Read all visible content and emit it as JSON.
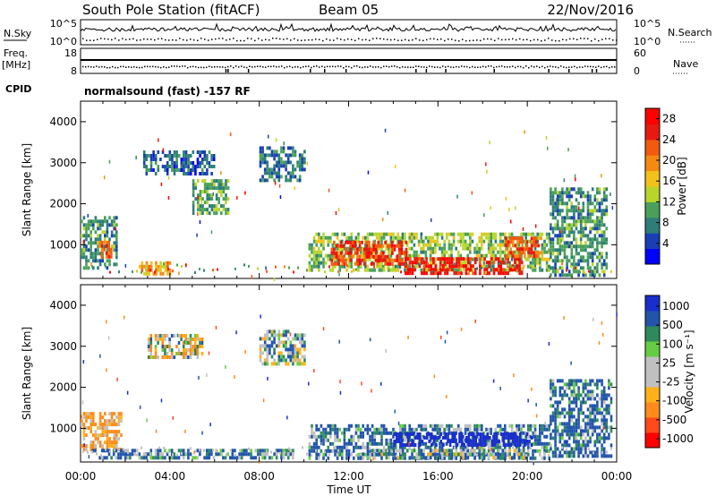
{
  "header": {
    "station_title": "South Pole Station (fitACF)",
    "beam": "Beam 05",
    "date": "22/Nov/2016",
    "cpid_label": "CPID",
    "cpid_value": "normalsound (fast) -157 RF"
  },
  "aux_panels": {
    "nsky_label": "N.Sky",
    "nsearch_label": "N.Search",
    "freq_label_line1": "Freq.",
    "freq_label_line2": "[MHz]",
    "nave_label": "Nave",
    "nsky_ticks": [
      "10^5",
      "10^0"
    ],
    "nsearch_ticks": [
      "10^5",
      "10^0"
    ],
    "freq_ticks": [
      "18",
      "8"
    ],
    "nave_ticks": [
      "60",
      "0"
    ]
  },
  "colors": {
    "power_scale": [
      "#0000ff",
      "#1a3fb5",
      "#2e7d78",
      "#4aa05a",
      "#b8d62a",
      "#f2c21a",
      "#f58a12",
      "#f25a10",
      "#e81a10",
      "#ff0000"
    ],
    "velocity_scale": [
      "#ff0000",
      "#ff4a1a",
      "#ff8c1a",
      "#ffb01a",
      "#c0c0c0",
      "#c0c0c0",
      "#66cc44",
      "#2e8a5a",
      "#2255aa",
      "#1a2ecc"
    ]
  },
  "chart_data": [
    {
      "type": "heatmap",
      "name": "power",
      "ylabel": "Slant Range [km]",
      "xlabel": "",
      "xticks": [
        "00:00",
        "04:00",
        "08:00",
        "12:00",
        "16:00",
        "20:00",
        "00:00"
      ],
      "yticks": [
        "1000",
        "2000",
        "3000",
        "4000"
      ],
      "ylim": [
        180,
        4500
      ],
      "xlim_hours": [
        0,
        24
      ],
      "colorbar_label": "Power [dB]",
      "colorbar_ticks": [
        "4",
        "8",
        "12",
        "16",
        "20",
        "24",
        "28"
      ],
      "colorbar_range": [
        0,
        30
      ],
      "regions": [
        {
          "t0": 0.0,
          "t1": 1.6,
          "r0": 450,
          "r1": 1700,
          "v": 9
        },
        {
          "t0": 0.8,
          "t1": 1.4,
          "r0": 700,
          "r1": 1100,
          "v": 22
        },
        {
          "t0": 2.6,
          "t1": 4.0,
          "r0": 300,
          "r1": 600,
          "v": 18
        },
        {
          "t0": 2.8,
          "t1": 6.0,
          "r0": 2700,
          "r1": 3300,
          "v": 6
        },
        {
          "t0": 5.0,
          "t1": 6.6,
          "r0": 1800,
          "r1": 2600,
          "v": 10
        },
        {
          "t0": 8.0,
          "t1": 10.0,
          "r0": 2600,
          "r1": 3400,
          "v": 7
        },
        {
          "t0": 10.2,
          "t1": 21.0,
          "r0": 400,
          "r1": 1300,
          "v": 12
        },
        {
          "t0": 11.2,
          "t1": 14.6,
          "r0": 500,
          "r1": 1100,
          "v": 24
        },
        {
          "t0": 14.5,
          "t1": 19.8,
          "r0": 350,
          "r1": 700,
          "v": 27
        },
        {
          "t0": 19.0,
          "t1": 20.6,
          "r0": 700,
          "r1": 1200,
          "v": 22
        },
        {
          "t0": 21.0,
          "t1": 23.6,
          "r0": 300,
          "r1": 2400,
          "v": 9
        }
      ]
    },
    {
      "type": "heatmap",
      "name": "velocity",
      "ylabel": "Slant Range [km]",
      "xlabel": "Time UT",
      "xticks": [
        "00:00",
        "04:00",
        "08:00",
        "12:00",
        "16:00",
        "20:00",
        "00:00"
      ],
      "yticks": [
        "1000",
        "2000",
        "3000",
        "4000"
      ],
      "ylim": [
        180,
        4500
      ],
      "xlim_hours": [
        0,
        24
      ],
      "colorbar_label": "Velocity [m s⁻¹]",
      "colorbar_ticks": [
        "1000",
        "500",
        "100",
        "25",
        "-25",
        "-100",
        "-500",
        "-1000"
      ],
      "colorbar_range": [
        -1000,
        1000
      ],
      "regions": [
        {
          "t0": 0.0,
          "t1": 1.8,
          "r0": 500,
          "r1": 1400,
          "v": -150
        },
        {
          "t0": 0.5,
          "t1": 9.5,
          "r0": 250,
          "r1": 500,
          "v": 120
        },
        {
          "t0": 3.0,
          "t1": 5.5,
          "r0": 2700,
          "r1": 3300,
          "v": -20
        },
        {
          "t0": 8.0,
          "t1": 10.0,
          "r0": 2600,
          "r1": 3400,
          "v": 50
        },
        {
          "t0": 10.2,
          "t1": 21.0,
          "r0": 300,
          "r1": 1100,
          "v": 120
        },
        {
          "t0": 14.0,
          "t1": 20.2,
          "r0": 600,
          "r1": 900,
          "v": 900
        },
        {
          "t0": 12.5,
          "t1": 20.0,
          "r0": 300,
          "r1": 500,
          "v": 60
        },
        {
          "t0": 21.0,
          "t1": 23.8,
          "r0": 300,
          "r1": 2200,
          "v": 150
        }
      ]
    }
  ]
}
